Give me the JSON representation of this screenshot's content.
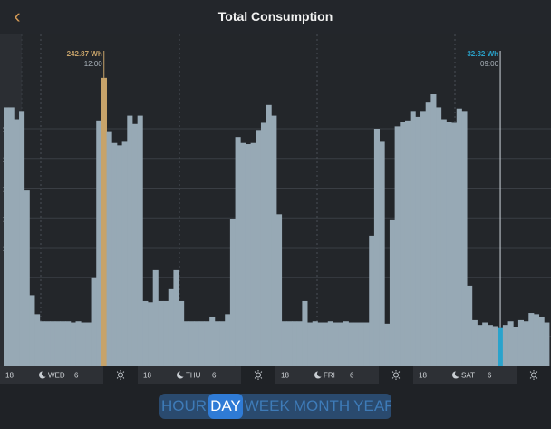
{
  "header": {
    "title": "Total Consumption",
    "back_icon": "back-chevron-icon"
  },
  "colors": {
    "bar": "#97a9b5",
    "highlight_gold": "#c7a36a",
    "highlight_blue": "#2aa3cc",
    "accent": "#d59a55"
  },
  "chart_data": {
    "type": "bar",
    "title": "Total Consumption",
    "unit": "Wh",
    "ylim": [
      0,
      260
    ],
    "yticks": [
      25,
      50,
      75,
      100,
      125,
      150,
      175,
      200
    ],
    "values": [
      218,
      218,
      208,
      215,
      148,
      60,
      44,
      38,
      38,
      38,
      38,
      38,
      38,
      37,
      38,
      37,
      37,
      75,
      207,
      242.87,
      198,
      188,
      186,
      189,
      211,
      204,
      211,
      55,
      54,
      81,
      55,
      55,
      65,
      81,
      55,
      38,
      38,
      38,
      38,
      38,
      42,
      38,
      38,
      44,
      124,
      193,
      188,
      187,
      188,
      199,
      205,
      220,
      211,
      128,
      38,
      38,
      38,
      38,
      55,
      37,
      38,
      37,
      37,
      38,
      37,
      37,
      38,
      37,
      37,
      37,
      37,
      110,
      200,
      189,
      36,
      123,
      202,
      206,
      207,
      215,
      210,
      215,
      222,
      229,
      218,
      208,
      206,
      205,
      217,
      215,
      68,
      39,
      35,
      37,
      35,
      34,
      32.32,
      35,
      38,
      33,
      39,
      38,
      45,
      44,
      42,
      37
    ],
    "highlights": [
      {
        "index": 19,
        "value_label": "242.87 Wh",
        "time_label": "12:00",
        "color": "gold"
      },
      {
        "index": 96,
        "value_label": "32.32 Wh",
        "time_label": "09:00",
        "color": "blue"
      }
    ],
    "xaxis": [
      {
        "label": "18",
        "kind": "num"
      },
      {
        "label": "WED",
        "kind": "night"
      },
      {
        "label": "6",
        "kind": "num"
      },
      {
        "label": "",
        "kind": "sun"
      },
      {
        "label": "18",
        "kind": "num"
      },
      {
        "label": "THU",
        "kind": "night"
      },
      {
        "label": "6",
        "kind": "num"
      },
      {
        "label": "",
        "kind": "sun"
      },
      {
        "label": "18",
        "kind": "num"
      },
      {
        "label": "FRI",
        "kind": "night"
      },
      {
        "label": "6",
        "kind": "num"
      },
      {
        "label": "",
        "kind": "sun"
      },
      {
        "label": "18",
        "kind": "num"
      },
      {
        "label": "SAT",
        "kind": "night"
      },
      {
        "label": "6",
        "kind": "num"
      },
      {
        "label": "",
        "kind": "sun"
      }
    ]
  },
  "periods": {
    "items": [
      "HOUR",
      "DAY",
      "WEEK",
      "MONTH",
      "YEAR"
    ],
    "active": "DAY"
  }
}
